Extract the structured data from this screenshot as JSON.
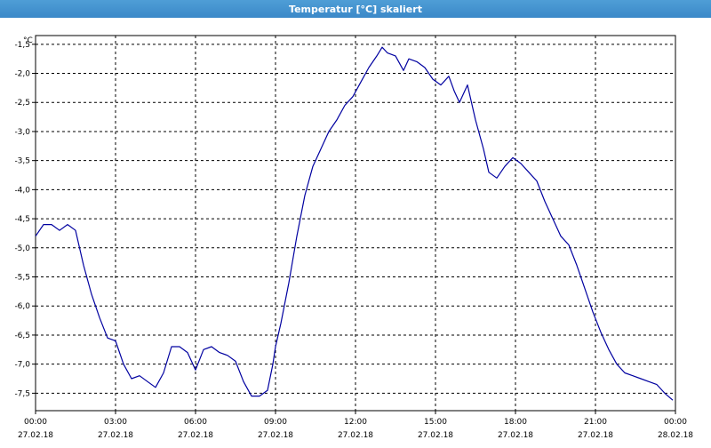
{
  "window": {
    "title": "Temperatur [°C] skaliert"
  },
  "chart_data": {
    "type": "line",
    "title": "Temperatur [°C] skaliert",
    "ylabel": "°C",
    "xlabel": "",
    "ylim": [
      -7.8,
      -1.35
    ],
    "xlim": [
      0,
      24
    ],
    "grid": true,
    "y_ticks": [
      -1.5,
      -2.0,
      -2.5,
      -3.0,
      -3.5,
      -4.0,
      -4.5,
      -5.0,
      -5.5,
      -6.0,
      -6.5,
      -7.0,
      -7.5
    ],
    "y_tick_labels": [
      "-1,5",
      "-2,0",
      "-2,5",
      "-3,0",
      "-3,5",
      "-4,0",
      "-4,5",
      "-5,0",
      "-5,5",
      "-6,0",
      "-6,5",
      "-7,0",
      "-7,5"
    ],
    "x_ticks": [
      {
        "h": 0,
        "time": "00:00",
        "date": "27.02.18"
      },
      {
        "h": 3,
        "time": "03:00",
        "date": "27.02.18"
      },
      {
        "h": 6,
        "time": "06:00",
        "date": "27.02.18"
      },
      {
        "h": 9,
        "time": "09:00",
        "date": "27.02.18"
      },
      {
        "h": 12,
        "time": "12:00",
        "date": "27.02.18"
      },
      {
        "h": 15,
        "time": "15:00",
        "date": "27.02.18"
      },
      {
        "h": 18,
        "time": "18:00",
        "date": "27.02.18"
      },
      {
        "h": 21,
        "time": "21:00",
        "date": "27.02.18"
      },
      {
        "h": 24,
        "time": "00:00",
        "date": "28.02.18"
      }
    ],
    "series": [
      {
        "color": "#0000a0",
        "x": [
          0,
          0.3,
          0.6,
          0.9,
          1.2,
          1.5,
          1.8,
          2.1,
          2.4,
          2.7,
          3.0,
          3.3,
          3.6,
          3.9,
          4.2,
          4.5,
          4.8,
          5.1,
          5.4,
          5.7,
          6.0,
          6.3,
          6.6,
          6.9,
          7.2,
          7.5,
          7.8,
          8.1,
          8.4,
          8.7,
          8.9,
          9.0,
          9.2,
          9.5,
          9.8,
          10.1,
          10.4,
          10.7,
          11.0,
          11.3,
          11.6,
          11.9,
          12.2,
          12.5,
          12.8,
          13.0,
          13.2,
          13.5,
          13.8,
          14.0,
          14.3,
          14.6,
          14.9,
          15.2,
          15.5,
          15.7,
          15.9,
          16.2,
          16.5,
          16.8,
          17.0,
          17.3,
          17.6,
          17.9,
          18.2,
          18.5,
          18.8,
          19.1,
          19.4,
          19.7,
          20.0,
          20.3,
          20.6,
          20.9,
          21.2,
          21.5,
          21.8,
          22.1,
          22.4,
          22.7,
          23.0,
          23.3,
          23.6,
          23.9
        ],
        "y": [
          -4.8,
          -4.6,
          -4.6,
          -4.7,
          -4.6,
          -4.7,
          -5.3,
          -5.8,
          -6.2,
          -6.55,
          -6.6,
          -7.0,
          -7.25,
          -7.2,
          -7.3,
          -7.4,
          -7.15,
          -6.7,
          -6.7,
          -6.8,
          -7.1,
          -6.75,
          -6.7,
          -6.8,
          -6.85,
          -6.95,
          -7.3,
          -7.55,
          -7.55,
          -7.45,
          -7.0,
          -6.7,
          -6.3,
          -5.6,
          -4.8,
          -4.1,
          -3.6,
          -3.3,
          -3.0,
          -2.8,
          -2.55,
          -2.4,
          -2.15,
          -1.9,
          -1.7,
          -1.55,
          -1.65,
          -1.7,
          -1.95,
          -1.75,
          -1.8,
          -1.9,
          -2.1,
          -2.2,
          -2.05,
          -2.3,
          -2.5,
          -2.2,
          -2.8,
          -3.3,
          -3.7,
          -3.8,
          -3.6,
          -3.45,
          -3.55,
          -3.7,
          -3.85,
          -4.2,
          -4.5,
          -4.8,
          -4.95,
          -5.3,
          -5.7,
          -6.1,
          -6.45,
          -6.75,
          -7.0,
          -7.15,
          -7.2,
          -7.25,
          -7.3,
          -7.35,
          -7.5,
          -7.62
        ]
      }
    ]
  }
}
